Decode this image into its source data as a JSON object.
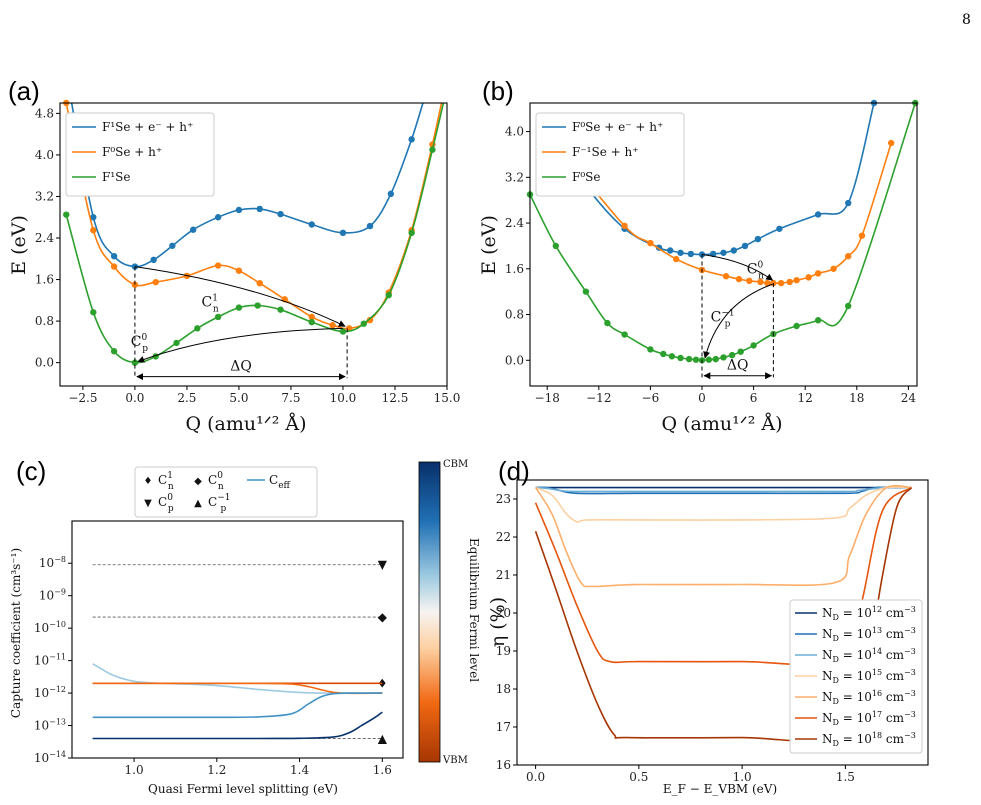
{
  "page_number": "8",
  "chart_data": [
    {
      "panel": "(a)",
      "type": "line",
      "xlabel": "Q (amu¹ᐟ² Å)",
      "ylabel": "E (eV)",
      "xlim": [
        -3.6,
        15.0
      ],
      "ylim": [
        -0.45,
        5.0
      ],
      "xticks": [
        -2.5,
        0.0,
        2.5,
        5.0,
        7.5,
        10.0,
        12.5,
        15.0
      ],
      "xtick_labels": [
        "−2.5",
        "0.0",
        "2.5",
        "5.0",
        "7.5",
        "10.0",
        "12.5",
        "15.0"
      ],
      "yticks": [
        0.0,
        0.8,
        1.6,
        2.4,
        3.2,
        4.0,
        4.8
      ],
      "ytick_labels": [
        "0.0",
        "0.8",
        "1.6",
        "2.4",
        "3.2",
        "4.0",
        "4.8"
      ],
      "legend_position": "top-left",
      "series": [
        {
          "name": "F¹Se + e⁻ + h⁺",
          "color": "#1f77b4",
          "x": [
            -3.3,
            -2.0,
            -1.0,
            0.0,
            0.9,
            1.8,
            2.8,
            4.0,
            5.0,
            6.0,
            7.0,
            8.5,
            10.0,
            11.3,
            12.3,
            13.3,
            14.0,
            14.7
          ],
          "y": [
            5.6,
            2.8,
            2.05,
            1.85,
            1.98,
            2.25,
            2.56,
            2.8,
            2.94,
            2.96,
            2.86,
            2.66,
            2.5,
            2.63,
            3.25,
            4.3,
            5.2,
            6.0
          ]
        },
        {
          "name": "F⁰Se + h⁺",
          "color": "#ff7f0e",
          "x": [
            -3.3,
            -2.0,
            -1.0,
            0.0,
            1.0,
            2.5,
            4.0,
            5.0,
            6.0,
            7.2,
            8.5,
            9.5,
            10.3,
            11.3,
            12.2,
            13.3,
            14.3,
            15.0
          ],
          "y": [
            5.0,
            2.55,
            1.85,
            1.5,
            1.55,
            1.67,
            1.87,
            1.77,
            1.53,
            1.22,
            0.88,
            0.72,
            0.66,
            0.82,
            1.35,
            2.55,
            4.2,
            5.5
          ]
        },
        {
          "name": "F¹Se",
          "color": "#2ca02c",
          "x": [
            -3.3,
            -2.0,
            -1.0,
            0.0,
            1.0,
            2.0,
            3.0,
            4.0,
            5.0,
            5.9,
            7.0,
            8.5,
            10.0,
            11.0,
            12.2,
            13.3,
            14.3,
            15.0
          ],
          "y": [
            2.85,
            0.97,
            0.22,
            0.0,
            0.12,
            0.38,
            0.66,
            0.88,
            1.06,
            1.1,
            1.02,
            0.78,
            0.6,
            0.75,
            1.3,
            2.5,
            4.1,
            5.3
          ]
        }
      ],
      "annotations": [
        {
          "text": "Cⁿ¹",
          "sub": "n",
          "sup": "1"
        },
        {
          "text": "Cₚ⁰",
          "sub": "p",
          "sup": "0"
        },
        {
          "text": "ΔQ"
        }
      ]
    },
    {
      "panel": "(b)",
      "type": "line",
      "xlabel": "Q (amu¹ᐟ² Å)",
      "ylabel": "E (eV)",
      "xlim": [
        -20.0,
        25.0
      ],
      "ylim": [
        -0.45,
        4.5
      ],
      "xticks": [
        -18,
        -12,
        -6,
        0,
        6,
        12,
        18,
        24
      ],
      "xtick_labels": [
        "−18",
        "−12",
        "−6",
        "0",
        "6",
        "12",
        "18",
        "24"
      ],
      "yticks": [
        0.0,
        0.8,
        1.6,
        2.4,
        3.2,
        4.0
      ],
      "ytick_labels": [
        "0.0",
        "0.8",
        "1.6",
        "2.4",
        "3.2",
        "4.0"
      ],
      "legend_position": "top-left",
      "series": [
        {
          "name": "F⁰Se + e⁻ + h⁺",
          "color": "#1f77b4",
          "x": [
            -17.0,
            -13.5,
            -9.0,
            -5.0,
            -3.7,
            -2.5,
            -1.3,
            0.0,
            1.3,
            2.5,
            3.7,
            5.0,
            6.5,
            9.0,
            13.5,
            17.0,
            20.0
          ],
          "y": [
            3.9,
            3.05,
            2.3,
            1.97,
            1.92,
            1.88,
            1.86,
            1.85,
            1.86,
            1.88,
            1.92,
            2.0,
            2.12,
            2.3,
            2.55,
            2.75,
            4.5
          ]
        },
        {
          "name": "F⁻¹Se + h⁺",
          "color": "#ff7f0e",
          "x": [
            -17.0,
            -9.0,
            -6.0,
            -3.0,
            0.0,
            2.8,
            4.3,
            5.5,
            6.8,
            7.6,
            8.3,
            9.2,
            10.2,
            11.0,
            12.4,
            13.5,
            15.3,
            17.0,
            18.6,
            22.0
          ],
          "y": [
            3.8,
            2.35,
            2.05,
            1.77,
            1.58,
            1.47,
            1.42,
            1.39,
            1.37,
            1.35,
            1.35,
            1.35,
            1.37,
            1.4,
            1.45,
            1.52,
            1.6,
            1.82,
            2.18,
            3.8
          ]
        },
        {
          "name": "F⁰Se",
          "color": "#2ca02c",
          "x": [
            -20.0,
            -17.0,
            -13.5,
            -11.0,
            -9.0,
            -6.0,
            -4.5,
            -3.5,
            -2.5,
            -1.5,
            -0.7,
            0.0,
            0.8,
            1.6,
            2.5,
            3.5,
            4.5,
            6.0,
            8.3,
            11.0,
            13.5,
            17.0,
            24.8
          ],
          "y": [
            2.9,
            2.0,
            1.2,
            0.65,
            0.45,
            0.19,
            0.11,
            0.07,
            0.04,
            0.02,
            0.01,
            0.0,
            0.01,
            0.02,
            0.05,
            0.09,
            0.15,
            0.26,
            0.46,
            0.6,
            0.7,
            0.95,
            4.5
          ]
        }
      ],
      "annotations": [
        {
          "text": "C⁰ₙ",
          "sub": "n",
          "sup": "0"
        },
        {
          "text": "C⁻¹ₚ",
          "sub": "p",
          "sup": "−1"
        },
        {
          "text": "ΔQ"
        }
      ]
    },
    {
      "panel": "(c)",
      "type": "line",
      "y_scale": "log",
      "xlabel": "Quasi Fermi level splitting (eV)",
      "ylabel": "Capture coefficient (cm³s⁻¹)",
      "xlim": [
        0.85,
        1.65
      ],
      "ylim": [
        1e-14,
        2e-07
      ],
      "xticks": [
        1.0,
        1.2,
        1.4,
        1.6
      ],
      "xtick_labels": [
        "1.0",
        "1.2",
        "1.4",
        "1.6"
      ],
      "ytick_exponents": [
        -14,
        -13,
        -12,
        -11,
        -10,
        -9,
        -8
      ],
      "legend_position": "top-center",
      "legend": [
        {
          "symbol": "♦",
          "label": "Cⁿ¹",
          "main": "C",
          "sub": "n",
          "sup": "1"
        },
        {
          "symbol": "◆",
          "label": "C⁰ₙ",
          "main": "C",
          "sub": "n",
          "sup": "0"
        },
        {
          "symbol": "line",
          "label": "C_eff",
          "main": "C",
          "sub": "eff",
          "sup": ""
        },
        {
          "symbol": "▼",
          "label": "C⁰ₚ",
          "main": "C",
          "sub": "p",
          "sup": "0"
        },
        {
          "symbol": "▲",
          "label": "C⁻¹ₚ",
          "main": "C",
          "sub": "p",
          "sup": "−1"
        }
      ],
      "reference_levels": [
        {
          "label": "Cₚ⁰",
          "marker": "▼",
          "value": 9e-09
        },
        {
          "label": "Cₙ⁰",
          "marker": "◆",
          "value": 2.2e-10
        },
        {
          "label": "Cₙ¹",
          "marker": "♦",
          "value": 2e-12
        },
        {
          "label": "Cₚ⁻¹",
          "marker": "▲",
          "value": 4e-14
        }
      ],
      "series": [
        {
          "color": "#9ecae1",
          "x": [
            0.9,
            0.95,
            1.0,
            1.05,
            1.1,
            1.15,
            1.2,
            1.25,
            1.3,
            1.35,
            1.4,
            1.45,
            1.5,
            1.55,
            1.6
          ],
          "y": [
            8e-12,
            3.5e-12,
            2.3e-12,
            2.05e-12,
            1.95e-12,
            1.85e-12,
            1.7e-12,
            1.5e-12,
            1.3e-12,
            1.15e-12,
            1.05e-12,
            1e-12,
            1e-12,
            1e-12,
            1e-12
          ]
        },
        {
          "color": "#d94801",
          "x": [
            0.9,
            1.0,
            1.1,
            1.2,
            1.3,
            1.4,
            1.45,
            1.5,
            1.55,
            1.6
          ],
          "y": [
            2e-12,
            2e-12,
            2e-12,
            2e-12,
            2e-12,
            2e-12,
            2e-12,
            2e-12,
            2e-12,
            2e-12
          ]
        },
        {
          "color": "#f16913",
          "x": [
            0.9,
            1.0,
            1.1,
            1.2,
            1.3,
            1.38,
            1.42,
            1.46,
            1.5,
            1.6
          ],
          "y": [
            2e-12,
            2e-12,
            2e-12,
            2e-12,
            2e-12,
            1.9e-12,
            1.6e-12,
            1.2e-12,
            1e-12,
            1e-12
          ]
        },
        {
          "color": "#4292c6",
          "x": [
            0.9,
            1.0,
            1.1,
            1.2,
            1.3,
            1.38,
            1.42,
            1.45,
            1.48,
            1.52,
            1.6
          ],
          "y": [
            1.8e-13,
            1.8e-13,
            1.8e-13,
            1.8e-13,
            1.85e-13,
            2.3e-13,
            4.5e-13,
            7.5e-13,
            9.5e-13,
            1e-12,
            1e-12
          ]
        },
        {
          "color": "#08306b",
          "x": [
            0.9,
            1.0,
            1.1,
            1.2,
            1.3,
            1.4,
            1.48,
            1.52,
            1.55,
            1.58,
            1.6
          ],
          "y": [
            4e-14,
            4e-14,
            4e-14,
            4e-14,
            4e-14,
            4.05e-14,
            4.4e-14,
            6e-14,
            1e-13,
            1.7e-13,
            2.6e-13
          ]
        }
      ],
      "colorbar": {
        "label": "Equilibrium Fermi level",
        "top": "CBM",
        "bottom": "VBM"
      }
    },
    {
      "panel": "(d)",
      "type": "line",
      "xlabel": "E_F − E_VBM (eV)",
      "ylabel": "η (%)",
      "xlim": [
        -0.09,
        1.9
      ],
      "ylim": [
        16.0,
        23.5
      ],
      "xticks": [
        0.0,
        0.5,
        1.0,
        1.5
      ],
      "xtick_labels": [
        "0.0",
        "0.5",
        "1.0",
        "1.5"
      ],
      "yticks": [
        16,
        17,
        18,
        19,
        20,
        21,
        22,
        23
      ],
      "ytick_labels": [
        "16",
        "17",
        "18",
        "19",
        "20",
        "21",
        "22",
        "23"
      ],
      "legend_position": "bottom-right",
      "series": [
        {
          "name": "N_D = 10¹² cm⁻³",
          "exp": "12",
          "color": "#08306b",
          "x": [
            0.0,
            0.5,
            1.0,
            1.5,
            1.82
          ],
          "y": [
            23.3,
            23.3,
            23.3,
            23.3,
            23.3
          ]
        },
        {
          "name": "N_D = 10¹³ cm⁻³",
          "exp": "13",
          "color": "#2171b5",
          "x": [
            0.0,
            0.05,
            0.1,
            0.2,
            0.5,
            1.0,
            1.5,
            1.58,
            1.65,
            1.82
          ],
          "y": [
            23.3,
            23.3,
            23.25,
            23.15,
            23.15,
            23.15,
            23.15,
            23.2,
            23.3,
            23.3
          ]
        },
        {
          "name": "N_D = 10¹⁴ cm⁻³",
          "exp": "14",
          "color": "#6baed6",
          "x": [
            0.0,
            0.06,
            0.12,
            0.2,
            0.5,
            1.0,
            1.5,
            1.56,
            1.62,
            1.7,
            1.82
          ],
          "y": [
            23.3,
            23.28,
            23.22,
            23.2,
            23.2,
            23.2,
            23.2,
            23.22,
            23.26,
            23.3,
            23.3
          ]
        },
        {
          "name": "N_D = 10¹⁵ cm⁻³",
          "exp": "15",
          "color": "#fdd0a2",
          "x": [
            0.0,
            0.08,
            0.15,
            0.2,
            0.25,
            0.5,
            1.0,
            1.45,
            1.52,
            1.6,
            1.7,
            1.82
          ],
          "y": [
            23.3,
            23.1,
            22.6,
            22.4,
            22.45,
            22.45,
            22.45,
            22.5,
            22.75,
            23.1,
            23.3,
            23.3
          ]
        },
        {
          "name": "N_D = 10¹⁶ cm⁻³",
          "exp": "16",
          "color": "#fdae6b",
          "x": [
            0.0,
            0.08,
            0.15,
            0.22,
            0.28,
            0.5,
            1.0,
            1.45,
            1.52,
            1.6,
            1.7,
            1.82
          ],
          "y": [
            23.3,
            22.6,
            21.6,
            20.8,
            20.7,
            20.75,
            20.75,
            20.8,
            21.5,
            22.6,
            23.3,
            23.3
          ]
        },
        {
          "name": "N_D = 10¹⁷ cm⁻³",
          "exp": "17",
          "color": "#e6550d",
          "x": [
            0.0,
            0.1,
            0.2,
            0.3,
            0.36,
            0.5,
            1.0,
            1.5,
            1.58,
            1.68,
            1.82
          ],
          "y": [
            22.9,
            21.6,
            20.2,
            19.0,
            18.72,
            18.72,
            18.72,
            18.75,
            20.3,
            22.7,
            23.3
          ]
        },
        {
          "name": "N_D = 10¹⁸ cm⁻³",
          "exp": "18",
          "color": "#a63603",
          "x": [
            0.0,
            0.1,
            0.2,
            0.3,
            0.38,
            0.45,
            1.0,
            1.5,
            1.6,
            1.68,
            1.75,
            1.82
          ],
          "y": [
            22.15,
            20.6,
            19.0,
            17.6,
            16.8,
            16.72,
            16.72,
            16.75,
            18.5,
            21.0,
            22.8,
            23.3
          ]
        }
      ]
    }
  ]
}
